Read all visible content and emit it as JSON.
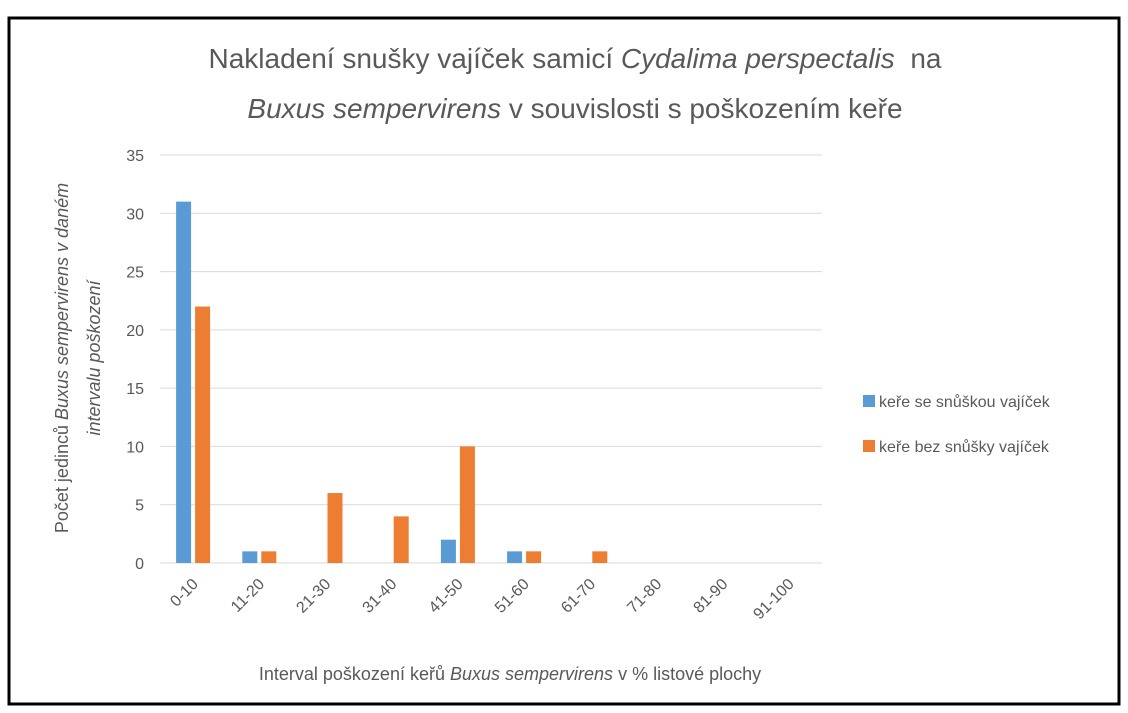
{
  "chart_data": {
    "type": "bar",
    "title": [
      "Nakladení snušky vajíček samicí ",
      "Cydalima perspectalis",
      "  na",
      "Buxus sempervirens",
      " v souvislosti s poškozením keře"
    ],
    "x_label": [
      "Interval poškození keřů ",
      "Buxus sempervirens",
      " v % listové plochy"
    ],
    "y_label": [
      "Počet jedinců ",
      "Buxus sempervirens v daném",
      "intervalu poškození"
    ],
    "categories": [
      "0-10",
      "11-20",
      "21-30",
      "31-40",
      "41-50",
      "51-60",
      "61-70",
      "71-80",
      "81-90",
      "91-100"
    ],
    "series": [
      {
        "name": "keře se snůškou vajíček",
        "color": "#5b9bd5",
        "values": [
          31,
          1,
          0,
          0,
          2,
          1,
          0,
          0,
          0,
          0
        ]
      },
      {
        "name": "keře bez snůšky vajíček",
        "color": "#ed7d31",
        "values": [
          22,
          1,
          6,
          4,
          10,
          1,
          1,
          0,
          0,
          0
        ]
      }
    ],
    "ylim": [
      0,
      35
    ],
    "yticks": [
      0,
      5,
      10,
      15,
      20,
      25,
      30,
      35
    ],
    "grid": true,
    "legend": "right"
  }
}
